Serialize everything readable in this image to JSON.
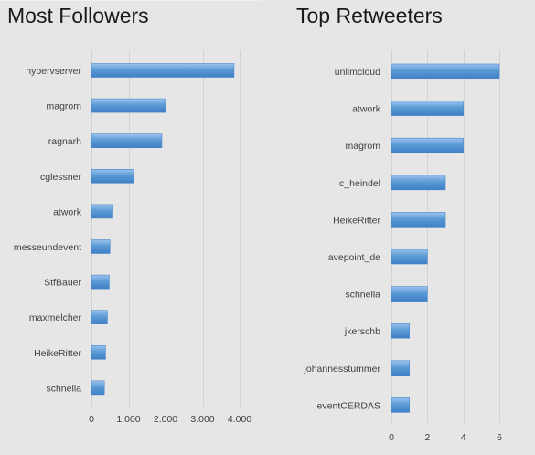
{
  "chart_data": [
    {
      "type": "bar",
      "orientation": "horizontal",
      "title": "Most Followers",
      "categories": [
        "hypervserver",
        "magrom",
        "ragnarh",
        "cglessner",
        "atwork",
        "messeundevent",
        "StfBauer",
        "maxmelcher",
        "HeikeRitter",
        "schnella"
      ],
      "values": [
        3850,
        2000,
        1900,
        1150,
        580,
        500,
        480,
        430,
        380,
        350
      ],
      "xlim": [
        0,
        4000
      ],
      "xticks": [
        0,
        1000,
        2000,
        3000,
        4000
      ],
      "xtick_labels": [
        "0",
        "1.000",
        "2.000",
        "3.000",
        "4.000"
      ],
      "grid": true,
      "bar_color": "#5b9bd5"
    },
    {
      "type": "bar",
      "orientation": "horizontal",
      "title": "Top Retweeters",
      "categories": [
        "unlimcloud",
        "atwork",
        "magrom",
        "c_heindel",
        "HeikeRitter",
        "avepoint_de",
        "schnella",
        "jkerschb",
        "johannesstummer",
        "eventCERDAS"
      ],
      "values": [
        6,
        4,
        4,
        3,
        3,
        2,
        2,
        1,
        1,
        1
      ],
      "xlim": [
        0,
        6
      ],
      "xticks": [
        0,
        2,
        4,
        6
      ],
      "xtick_labels": [
        "0",
        "2",
        "4",
        "6"
      ],
      "grid": true,
      "bar_color": "#5b9bd5"
    }
  ]
}
